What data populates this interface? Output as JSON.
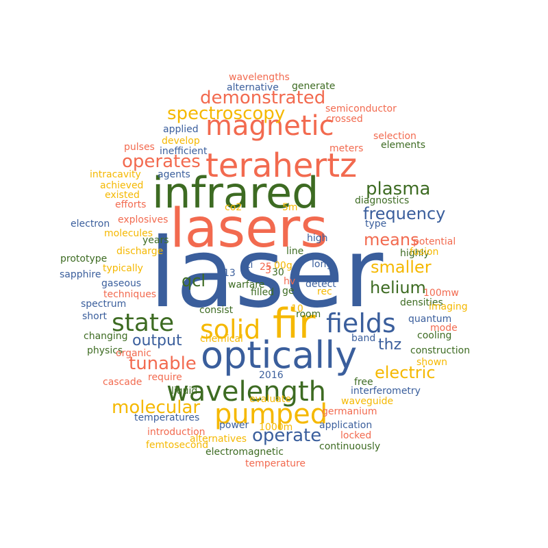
{
  "palette": {
    "blue": "#3a5e9c",
    "green": "#3d6b22",
    "orange": "#f26a4f",
    "yellow": "#f5b800",
    "background": "#ffffff"
  },
  "words": [
    {
      "text": "laser",
      "color": "blue"
    },
    {
      "text": "lasers",
      "color": "orange"
    },
    {
      "text": "infrared",
      "color": "green"
    },
    {
      "text": "terahertz",
      "color": "orange"
    },
    {
      "text": "optically",
      "color": "blue"
    },
    {
      "text": "fir",
      "color": "yellow"
    },
    {
      "text": "magnetic",
      "color": "orange"
    },
    {
      "text": "wavelength",
      "color": "green"
    },
    {
      "text": "pumped",
      "color": "yellow"
    },
    {
      "text": "solid",
      "color": "yellow"
    },
    {
      "text": "state",
      "color": "green"
    },
    {
      "text": "fields",
      "color": "blue"
    },
    {
      "text": "spectroscopy",
      "color": "yellow"
    },
    {
      "text": "demonstrated",
      "color": "orange"
    },
    {
      "text": "operates",
      "color": "orange"
    },
    {
      "text": "plasma",
      "color": "green"
    },
    {
      "text": "frequency",
      "color": "blue"
    },
    {
      "text": "means",
      "color": "orange"
    },
    {
      "text": "smaller",
      "color": "yellow"
    },
    {
      "text": "helium",
      "color": "green"
    },
    {
      "text": "qcl",
      "color": "green"
    },
    {
      "text": "output",
      "color": "blue"
    },
    {
      "text": "tunable",
      "color": "orange"
    },
    {
      "text": "thz",
      "color": "blue"
    },
    {
      "text": "electric",
      "color": "yellow"
    },
    {
      "text": "molecular",
      "color": "yellow"
    },
    {
      "text": "operate",
      "color": "blue"
    },
    {
      "text": "wavelengths",
      "color": "orange"
    },
    {
      "text": "alternative",
      "color": "blue"
    },
    {
      "text": "generate",
      "color": "green"
    },
    {
      "text": "semiconductor",
      "color": "orange"
    },
    {
      "text": "crossed",
      "color": "orange"
    },
    {
      "text": "applied",
      "color": "blue"
    },
    {
      "text": "develop",
      "color": "yellow"
    },
    {
      "text": "selection",
      "color": "orange"
    },
    {
      "text": "inefficient",
      "color": "blue"
    },
    {
      "text": "pulses",
      "color": "orange"
    },
    {
      "text": "meters",
      "color": "orange"
    },
    {
      "text": "elements",
      "color": "green"
    },
    {
      "text": "agents",
      "color": "blue"
    },
    {
      "text": "intracavity",
      "color": "yellow"
    },
    {
      "text": "achieved",
      "color": "yellow"
    },
    {
      "text": "existed",
      "color": "yellow"
    },
    {
      "text": "efforts",
      "color": "orange"
    },
    {
      "text": "co2",
      "color": "yellow"
    },
    {
      "text": "5m",
      "color": "yellow"
    },
    {
      "text": "diagnostics",
      "color": "green"
    },
    {
      "text": "electron",
      "color": "blue"
    },
    {
      "text": "explosives",
      "color": "orange"
    },
    {
      "text": "type",
      "color": "blue"
    },
    {
      "text": "molecules",
      "color": "yellow"
    },
    {
      "text": "discharge",
      "color": "yellow"
    },
    {
      "text": "years",
      "color": "green"
    },
    {
      "text": "high",
      "color": "blue"
    },
    {
      "text": "potential",
      "color": "orange"
    },
    {
      "text": "prototype",
      "color": "green"
    },
    {
      "text": "typically",
      "color": "yellow"
    },
    {
      "text": "line",
      "color": "green"
    },
    {
      "text": "highly",
      "color": "green"
    },
    {
      "text": "fusion",
      "color": "yellow"
    },
    {
      "text": "sapphire",
      "color": "blue"
    },
    {
      "text": "ti",
      "color": "blue"
    },
    {
      "text": "25",
      "color": "orange"
    },
    {
      "text": "00g",
      "color": "yellow"
    },
    {
      "text": "long",
      "color": "blue"
    },
    {
      "text": "gaseous",
      "color": "blue"
    },
    {
      "text": "13",
      "color": "blue"
    },
    {
      "text": "30",
      "color": "green"
    },
    {
      "text": "3",
      "color": "orange"
    },
    {
      "text": "warfare",
      "color": "green"
    },
    {
      "text": "hv",
      "color": "orange"
    },
    {
      "text": "ge",
      "color": "green"
    },
    {
      "text": "detect",
      "color": "blue"
    },
    {
      "text": "100mw",
      "color": "orange"
    },
    {
      "text": "techniques",
      "color": "orange"
    },
    {
      "text": "filled",
      "color": "green"
    },
    {
      "text": "rec",
      "color": "yellow"
    },
    {
      "text": "spectrum",
      "color": "blue"
    },
    {
      "text": "densities",
      "color": "green"
    },
    {
      "text": "imaging",
      "color": "yellow"
    },
    {
      "text": "short",
      "color": "blue"
    },
    {
      "text": "10",
      "color": "yellow"
    },
    {
      "text": "room",
      "color": "green"
    },
    {
      "text": "consist",
      "color": "green"
    },
    {
      "text": "quantum",
      "color": "blue"
    },
    {
      "text": "mode",
      "color": "orange"
    },
    {
      "text": "changing",
      "color": "green"
    },
    {
      "text": "cooling",
      "color": "green"
    },
    {
      "text": "chemical",
      "color": "yellow"
    },
    {
      "text": "band",
      "color": "blue"
    },
    {
      "text": "physics",
      "color": "green"
    },
    {
      "text": "organic",
      "color": "orange"
    },
    {
      "text": "construction",
      "color": "green"
    },
    {
      "text": "shown",
      "color": "yellow"
    },
    {
      "text": "cascade",
      "color": "orange"
    },
    {
      "text": "require",
      "color": "orange"
    },
    {
      "text": "2016",
      "color": "blue"
    },
    {
      "text": "free",
      "color": "green"
    },
    {
      "text": "liquid",
      "color": "green"
    },
    {
      "text": "interferometry",
      "color": "blue"
    },
    {
      "text": "evaluate",
      "color": "yellow"
    },
    {
      "text": "waveguide",
      "color": "yellow"
    },
    {
      "text": "germanium",
      "color": "orange"
    },
    {
      "text": "temperatures",
      "color": "blue"
    },
    {
      "text": "power",
      "color": "blue"
    },
    {
      "text": "application",
      "color": "blue"
    },
    {
      "text": "introduction",
      "color": "orange"
    },
    {
      "text": "1000m",
      "color": "yellow"
    },
    {
      "text": "locked",
      "color": "orange"
    },
    {
      "text": "alternatives",
      "color": "yellow"
    },
    {
      "text": "femtosecond",
      "color": "yellow"
    },
    {
      "text": "electromagnetic",
      "color": "green"
    },
    {
      "text": "continuously",
      "color": "green"
    },
    {
      "text": "temperature",
      "color": "orange"
    }
  ]
}
